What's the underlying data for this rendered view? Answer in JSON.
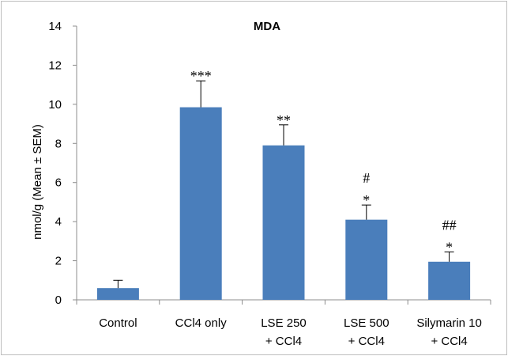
{
  "chart_data": {
    "type": "bar",
    "title": "MDA",
    "ylabel": "nmol/g (Mean ± SEM)",
    "xlabel": "",
    "ylim": [
      0,
      14
    ],
    "yticks": [
      0,
      2,
      4,
      6,
      8,
      10,
      12,
      14
    ],
    "grid": false,
    "bar_color": "#4a7ebb",
    "categories": [
      [
        "Control"
      ],
      [
        "CCl4 only"
      ],
      [
        "LSE 250",
        "+ CCl4"
      ],
      [
        "LSE 500",
        "+ CCl4"
      ],
      [
        "Silymarin 10",
        "+ CCl4"
      ]
    ],
    "values": [
      0.6,
      9.85,
      7.9,
      4.1,
      1.95
    ],
    "errors": [
      0.4,
      1.35,
      1.05,
      0.75,
      0.5
    ],
    "annotations": [
      [],
      [
        "***"
      ],
      [
        "**"
      ],
      [
        "#",
        "*"
      ],
      [
        "##",
        "*"
      ]
    ]
  }
}
